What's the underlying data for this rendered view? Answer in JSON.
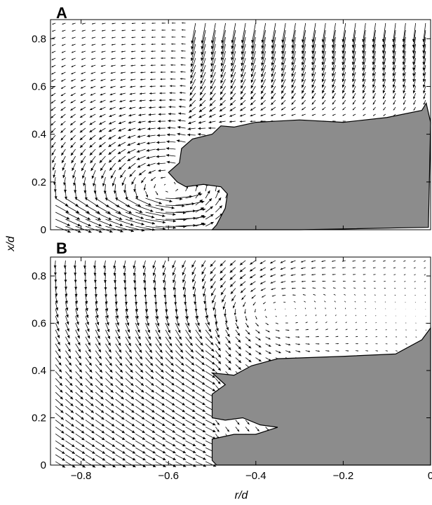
{
  "chart_data": [
    {
      "type": "quiver",
      "panel_label": "A",
      "xlabel": "",
      "ylabel": "x/d",
      "xlim": [
        -0.87,
        0.0
      ],
      "ylim": [
        0.0,
        0.88
      ],
      "x_ticks": [],
      "y_ticks": [
        "0",
        "0.2",
        "0.4",
        "0.6",
        "0.8"
      ],
      "y_tick_values": [
        0,
        0.2,
        0.4,
        0.6,
        0.8
      ],
      "shaded_region_fill": "#8c8c8c",
      "shaded_region_outline": [
        [
          -0.49,
          0.02
        ],
        [
          -0.47,
          0.09
        ],
        [
          -0.465,
          0.15
        ],
        [
          -0.48,
          0.18
        ],
        [
          -0.52,
          0.19
        ],
        [
          -0.56,
          0.18
        ],
        [
          -0.58,
          0.2
        ],
        [
          -0.6,
          0.24
        ],
        [
          -0.575,
          0.28
        ],
        [
          -0.57,
          0.34
        ],
        [
          -0.545,
          0.38
        ],
        [
          -0.5,
          0.4
        ],
        [
          -0.48,
          0.435
        ],
        [
          -0.45,
          0.43
        ],
        [
          -0.4,
          0.45
        ],
        [
          -0.3,
          0.46
        ],
        [
          -0.2,
          0.45
        ],
        [
          -0.1,
          0.47
        ],
        [
          -0.02,
          0.5
        ],
        [
          -0.01,
          0.53
        ],
        [
          0.0,
          0.45
        ],
        [
          -0.005,
          0.01
        ],
        [
          -0.3,
          0.0
        ],
        [
          -0.5,
          0.0
        ]
      ],
      "vortex_center": [
        -0.6,
        0.18
      ]
    },
    {
      "type": "quiver",
      "panel_label": "B",
      "xlabel": "r/d",
      "ylabel": "x/d",
      "xlim": [
        -0.87,
        0.0
      ],
      "ylim": [
        0.0,
        0.88
      ],
      "x_ticks": [
        "−0.8",
        "−0.6",
        "−0.4",
        "−0.2",
        "0"
      ],
      "x_tick_values": [
        -0.8,
        -0.6,
        -0.4,
        -0.2,
        0.0
      ],
      "y_ticks": [
        "0",
        "0.2",
        "0.4",
        "0.6",
        "0.8"
      ],
      "y_tick_values": [
        0,
        0.2,
        0.4,
        0.6,
        0.8
      ],
      "shaded_region_fill": "#8c8c8c",
      "shaded_region_outline": [
        [
          -0.5,
          0.02
        ],
        [
          -0.5,
          0.11
        ],
        [
          -0.45,
          0.13
        ],
        [
          -0.4,
          0.13
        ],
        [
          -0.35,
          0.16
        ],
        [
          -0.39,
          0.17
        ],
        [
          -0.43,
          0.2
        ],
        [
          -0.47,
          0.19
        ],
        [
          -0.5,
          0.2
        ],
        [
          -0.5,
          0.3
        ],
        [
          -0.47,
          0.34
        ],
        [
          -0.5,
          0.39
        ],
        [
          -0.45,
          0.38
        ],
        [
          -0.41,
          0.42
        ],
        [
          -0.35,
          0.45
        ],
        [
          -0.2,
          0.46
        ],
        [
          -0.08,
          0.47
        ],
        [
          -0.02,
          0.53
        ],
        [
          0.0,
          0.58
        ],
        [
          0.0,
          0.0
        ],
        [
          -0.3,
          0.0
        ],
        [
          -0.49,
          0.0
        ]
      ],
      "vortex_center": [
        -0.42,
        0.65
      ]
    }
  ]
}
